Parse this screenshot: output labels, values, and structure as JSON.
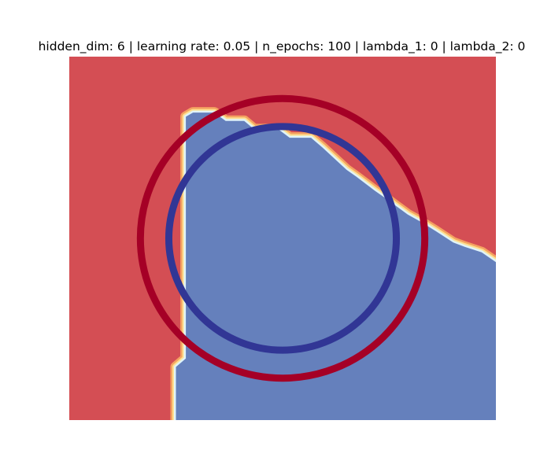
{
  "chart_data": {
    "type": "heatmap",
    "title": "hidden_dim: 6 | learning rate: 0.05 | n_epochs: 100 | lambda_1: 0 | lambda_2: 0",
    "xlabel": "",
    "ylabel": "",
    "xlim": [
      -1.5,
      1.5
    ],
    "ylim": [
      -1.3,
      1.3
    ],
    "axes_visible": false,
    "grid": false,
    "colormap": "RdYlBu",
    "region_colors": {
      "class_outer": "#d44e54",
      "class_inner": "#6580bc"
    },
    "decision_boundary": [
      [
        -0.75,
        -1.3
      ],
      [
        -0.75,
        -0.92
      ],
      [
        -0.68,
        -0.86
      ],
      [
        -0.68,
        0.87
      ],
      [
        -0.63,
        0.9
      ],
      [
        -0.48,
        0.9
      ],
      [
        -0.4,
        0.84
      ],
      [
        -0.27,
        0.84
      ],
      [
        -0.2,
        0.78
      ],
      [
        -0.03,
        0.78
      ],
      [
        0.05,
        0.72
      ],
      [
        0.2,
        0.72
      ],
      [
        0.28,
        0.65
      ],
      [
        0.45,
        0.49
      ],
      [
        0.52,
        0.44
      ],
      [
        0.65,
        0.34
      ],
      [
        0.72,
        0.29
      ],
      [
        0.88,
        0.17
      ],
      [
        0.97,
        0.12
      ],
      [
        1.08,
        0.05
      ],
      [
        1.2,
        -0.03
      ],
      [
        1.28,
        -0.06
      ],
      [
        1.4,
        -0.1
      ],
      [
        1.5,
        -0.17
      ]
    ],
    "series": [
      {
        "type": "circle",
        "color": "#a50026",
        "center": [
          0,
          0
        ],
        "radius": 1.0
      },
      {
        "type": "circle",
        "color": "#313695",
        "center": [
          0,
          0
        ],
        "radius": 0.8
      }
    ]
  }
}
